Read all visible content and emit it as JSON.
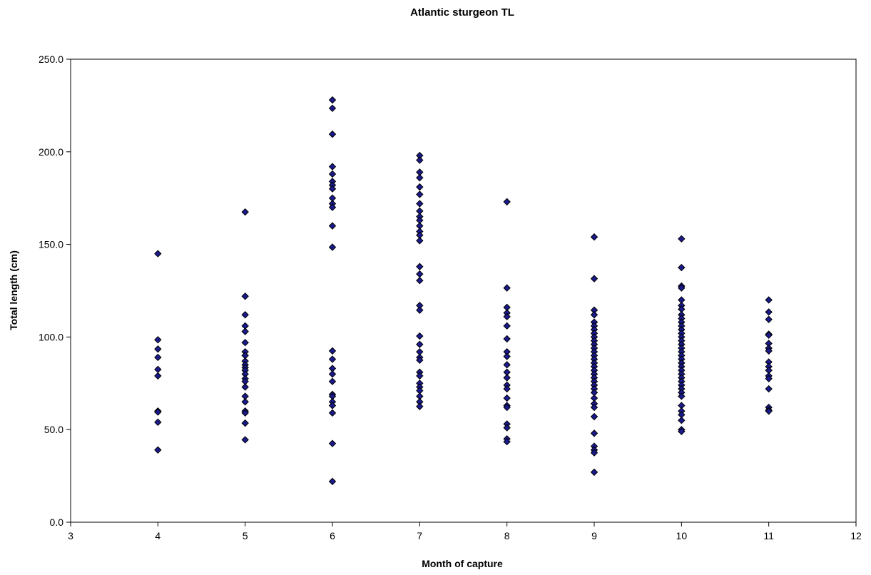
{
  "chart_data": {
    "type": "scatter",
    "title": "Atlantic sturgeon TL",
    "xlabel": "Month of capture",
    "ylabel": "Total length (cm)",
    "xlim": [
      3,
      12
    ],
    "ylim": [
      0,
      250
    ],
    "xticks": [
      "3",
      "4",
      "5",
      "6",
      "7",
      "8",
      "9",
      "10",
      "11",
      "12"
    ],
    "yticks": [
      "0.0",
      "50.0",
      "100.0",
      "150.0",
      "200.0",
      "250.0"
    ],
    "grid": false,
    "legend": "none",
    "marker": {
      "shape": "diamond",
      "fill": "#1a1a8c",
      "stroke": "#000000"
    },
    "series": [
      {
        "points": [
          [
            4,
            145
          ],
          [
            4,
            98.5
          ],
          [
            4,
            93.5
          ],
          [
            4,
            89
          ],
          [
            4,
            82.5
          ],
          [
            4,
            79
          ],
          [
            4,
            60
          ],
          [
            4,
            59.5
          ],
          [
            4,
            54
          ],
          [
            4,
            39
          ],
          [
            5,
            167.5
          ],
          [
            5,
            122
          ],
          [
            5,
            112
          ],
          [
            5,
            106
          ],
          [
            5,
            103
          ],
          [
            5,
            97
          ],
          [
            5,
            92
          ],
          [
            5,
            90
          ],
          [
            5,
            87
          ],
          [
            5,
            85
          ],
          [
            5,
            83.5
          ],
          [
            5,
            82
          ],
          [
            5,
            80
          ],
          [
            5,
            77.5
          ],
          [
            5,
            76
          ],
          [
            5,
            73
          ],
          [
            5,
            68
          ],
          [
            5,
            65
          ],
          [
            5,
            60
          ],
          [
            5,
            59
          ],
          [
            5,
            53.5
          ],
          [
            5,
            44.5
          ],
          [
            6,
            228
          ],
          [
            6,
            223.5
          ],
          [
            6,
            209.5
          ],
          [
            6,
            192
          ],
          [
            6,
            188
          ],
          [
            6,
            184
          ],
          [
            6,
            182
          ],
          [
            6,
            180
          ],
          [
            6,
            175
          ],
          [
            6,
            172
          ],
          [
            6,
            170
          ],
          [
            6,
            160
          ],
          [
            6,
            148.5
          ],
          [
            6,
            92.5
          ],
          [
            6,
            88
          ],
          [
            6,
            83
          ],
          [
            6,
            80
          ],
          [
            6,
            76
          ],
          [
            6,
            69
          ],
          [
            6,
            68
          ],
          [
            6,
            65
          ],
          [
            6,
            63
          ],
          [
            6,
            59
          ],
          [
            6,
            42.5
          ],
          [
            6,
            22
          ],
          [
            7,
            198
          ],
          [
            7,
            195.5
          ],
          [
            7,
            189
          ],
          [
            7,
            186
          ],
          [
            7,
            181
          ],
          [
            7,
            177
          ],
          [
            7,
            172
          ],
          [
            7,
            168
          ],
          [
            7,
            165
          ],
          [
            7,
            163
          ],
          [
            7,
            160
          ],
          [
            7,
            157
          ],
          [
            7,
            155
          ],
          [
            7,
            152
          ],
          [
            7,
            138
          ],
          [
            7,
            134
          ],
          [
            7,
            130.5
          ],
          [
            7,
            117
          ],
          [
            7,
            114.5
          ],
          [
            7,
            100.5
          ],
          [
            7,
            96
          ],
          [
            7,
            92
          ],
          [
            7,
            89
          ],
          [
            7,
            87.5
          ],
          [
            7,
            81
          ],
          [
            7,
            79
          ],
          [
            7,
            75
          ],
          [
            7,
            73
          ],
          [
            7,
            71
          ],
          [
            7,
            68
          ],
          [
            7,
            65
          ],
          [
            7,
            62.5
          ],
          [
            8,
            173
          ],
          [
            8,
            126.5
          ],
          [
            8,
            116
          ],
          [
            8,
            113
          ],
          [
            8,
            111
          ],
          [
            8,
            106
          ],
          [
            8,
            99
          ],
          [
            8,
            92
          ],
          [
            8,
            89.5
          ],
          [
            8,
            85
          ],
          [
            8,
            81
          ],
          [
            8,
            78
          ],
          [
            8,
            74
          ],
          [
            8,
            72
          ],
          [
            8,
            67
          ],
          [
            8,
            63
          ],
          [
            8,
            62
          ],
          [
            8,
            53
          ],
          [
            8,
            51
          ],
          [
            8,
            45
          ],
          [
            8,
            43.5
          ],
          [
            9,
            154
          ],
          [
            9,
            131.5
          ],
          [
            9,
            114.5
          ],
          [
            9,
            112
          ],
          [
            9,
            108
          ],
          [
            9,
            106
          ],
          [
            9,
            104
          ],
          [
            9,
            102
          ],
          [
            9,
            100
          ],
          [
            9,
            98
          ],
          [
            9,
            96
          ],
          [
            9,
            94
          ],
          [
            9,
            92
          ],
          [
            9,
            90
          ],
          [
            9,
            88
          ],
          [
            9,
            86
          ],
          [
            9,
            84
          ],
          [
            9,
            82
          ],
          [
            9,
            80
          ],
          [
            9,
            78
          ],
          [
            9,
            76
          ],
          [
            9,
            74
          ],
          [
            9,
            72
          ],
          [
            9,
            70
          ],
          [
            9,
            67
          ],
          [
            9,
            64
          ],
          [
            9,
            62
          ],
          [
            9,
            57
          ],
          [
            9,
            48
          ],
          [
            9,
            41
          ],
          [
            9,
            39
          ],
          [
            9,
            37.5
          ],
          [
            9,
            27
          ],
          [
            10,
            153
          ],
          [
            10,
            137.5
          ],
          [
            10,
            127.5
          ],
          [
            10,
            126.5
          ],
          [
            10,
            120
          ],
          [
            10,
            117
          ],
          [
            10,
            115
          ],
          [
            10,
            112
          ],
          [
            10,
            110
          ],
          [
            10,
            108
          ],
          [
            10,
            106
          ],
          [
            10,
            104
          ],
          [
            10,
            102
          ],
          [
            10,
            100
          ],
          [
            10,
            98
          ],
          [
            10,
            96
          ],
          [
            10,
            94
          ],
          [
            10,
            92
          ],
          [
            10,
            90
          ],
          [
            10,
            88
          ],
          [
            10,
            86
          ],
          [
            10,
            84
          ],
          [
            10,
            82
          ],
          [
            10,
            80
          ],
          [
            10,
            78
          ],
          [
            10,
            76
          ],
          [
            10,
            74
          ],
          [
            10,
            72
          ],
          [
            10,
            70
          ],
          [
            10,
            68
          ],
          [
            10,
            63
          ],
          [
            10,
            60
          ],
          [
            10,
            58
          ],
          [
            10,
            55
          ],
          [
            10,
            50
          ],
          [
            10,
            49
          ],
          [
            11,
            120
          ],
          [
            11,
            113.5
          ],
          [
            11,
            109.5
          ],
          [
            11,
            101.5
          ],
          [
            11,
            101
          ],
          [
            11,
            96.5
          ],
          [
            11,
            94
          ],
          [
            11,
            92.5
          ],
          [
            11,
            86.5
          ],
          [
            11,
            84
          ],
          [
            11,
            82
          ],
          [
            11,
            79
          ],
          [
            11,
            77.5
          ],
          [
            11,
            72
          ],
          [
            11,
            62
          ],
          [
            11,
            60.5
          ],
          [
            11,
            60
          ]
        ]
      }
    ]
  }
}
